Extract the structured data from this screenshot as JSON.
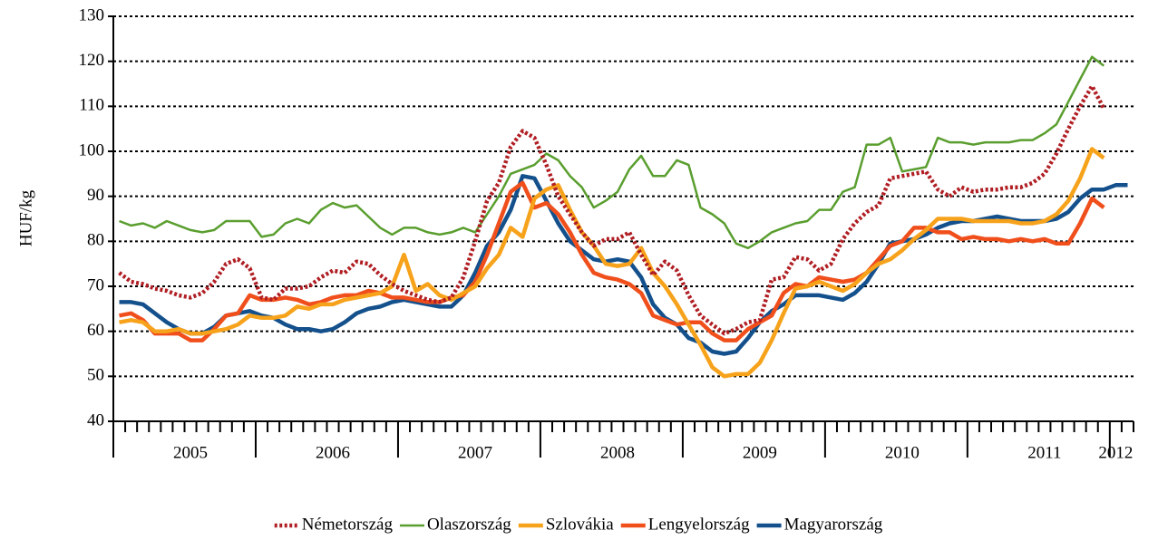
{
  "chart_data": {
    "type": "line",
    "ylabel": "HUF/kg",
    "categories": [
      null,
      null,
      null,
      null,
      null,
      null,
      "2005",
      null,
      null,
      null,
      null,
      null,
      null,
      null,
      null,
      null,
      null,
      null,
      "2006",
      null,
      null,
      null,
      null,
      null,
      null,
      null,
      null,
      null,
      null,
      null,
      "2007",
      null,
      null,
      null,
      null,
      null,
      null,
      null,
      null,
      null,
      null,
      null,
      "2008",
      null,
      null,
      null,
      null,
      null,
      null,
      null,
      null,
      null,
      null,
      null,
      "2009",
      null,
      null,
      null,
      null,
      null,
      null,
      null,
      null,
      null,
      null,
      null,
      "2010",
      null,
      null,
      null,
      null,
      null,
      null,
      null,
      null,
      null,
      null,
      null,
      "2011",
      null,
      null,
      null,
      null,
      null,
      "2012",
      null
    ],
    "ylim": [
      40,
      130
    ],
    "yticks": [
      40,
      50,
      60,
      70,
      80,
      90,
      100,
      110,
      120,
      130
    ],
    "grid": true,
    "series": [
      {
        "name": "Németország",
        "color": "#b01e23",
        "dashed": true,
        "values": [
          73,
          71,
          70.5,
          69.5,
          69,
          68,
          67.5,
          68.5,
          71,
          75,
          76,
          74,
          67.5,
          67,
          69.5,
          69.5,
          70,
          72,
          73.5,
          73,
          75.5,
          75,
          72.5,
          70.5,
          69,
          68,
          67,
          66.5,
          67.5,
          72,
          80,
          89,
          93,
          101,
          104.5,
          103,
          97,
          90,
          86,
          82,
          79,
          80.5,
          80.5,
          82,
          77,
          72.5,
          75.5,
          73.5,
          68,
          63.5,
          61.5,
          59.5,
          60.5,
          62,
          62.5,
          71.5,
          72,
          76.5,
          76,
          73.5,
          75,
          80.5,
          84,
          86.5,
          88,
          94,
          94.5,
          95,
          95.5,
          91.5,
          90,
          92,
          91,
          91.5,
          91.5,
          92,
          92,
          93,
          95,
          99.5,
          105,
          110,
          114.5,
          109.5,
          null,
          null
        ]
      },
      {
        "name": "Olaszország",
        "color": "#5a9e2f",
        "values": [
          84.5,
          83.5,
          84,
          83,
          84.5,
          83.5,
          82.5,
          82,
          82.5,
          84.5,
          84.5,
          84.5,
          81,
          81.5,
          84,
          85,
          84,
          87,
          88.5,
          87.5,
          88,
          85.5,
          83,
          81.5,
          83,
          83,
          82,
          81.5,
          82,
          83,
          82,
          86,
          90,
          95,
          96,
          97,
          99.5,
          98,
          94.5,
          92,
          87.5,
          89,
          91,
          96,
          99,
          94.5,
          94.5,
          98,
          97,
          87.5,
          86,
          84,
          79.5,
          78.5,
          80,
          82,
          83,
          84,
          84.5,
          87,
          87,
          91,
          92,
          101.5,
          101.5,
          103,
          95.5,
          96,
          96.5,
          103,
          102,
          102,
          101.5,
          102,
          102,
          102,
          102.5,
          102.5,
          104,
          106,
          111,
          116,
          121,
          119,
          null,
          null
        ]
      },
      {
        "name": "Szlovákia",
        "color": "#f7a21b",
        "values": [
          62,
          62.5,
          62,
          60,
          60,
          60.5,
          59.5,
          59.5,
          60,
          60.5,
          61.5,
          63.5,
          63,
          63,
          63.5,
          65.5,
          65,
          66,
          66,
          67,
          67.5,
          68,
          68.5,
          70,
          77,
          69,
          70.5,
          68,
          67,
          68.5,
          70,
          74,
          77,
          83,
          81,
          89.5,
          91.5,
          92.5,
          87,
          82,
          79,
          75,
          74.5,
          75,
          78.5,
          73,
          70,
          66,
          61.5,
          57,
          52,
          50,
          50.5,
          50.5,
          53,
          58,
          64,
          69.5,
          70,
          71,
          70,
          69,
          70.5,
          73,
          75,
          76,
          78,
          80.5,
          82.5,
          85,
          85,
          85,
          84.5,
          84.5,
          84.5,
          84.5,
          84,
          84,
          84.5,
          86,
          89,
          94,
          100.5,
          98.5,
          null,
          null
        ]
      },
      {
        "name": "Lengyelország",
        "color": "#f04f1c",
        "values": [
          63.5,
          64,
          62.5,
          59.5,
          59.5,
          59.5,
          58,
          58,
          60.5,
          63.5,
          64,
          68,
          67,
          67,
          67.5,
          67,
          66,
          66.5,
          67.5,
          68,
          68,
          69,
          68.5,
          67.5,
          67.5,
          67,
          66.5,
          66.5,
          67.5,
          68,
          71,
          77,
          84,
          91,
          93,
          87.5,
          88.5,
          86,
          82,
          77,
          73,
          72,
          71.5,
          70.5,
          68.5,
          63.5,
          62.5,
          61.5,
          62,
          62,
          59.5,
          58,
          58,
          60.5,
          62,
          63.5,
          68.5,
          70.5,
          70,
          72,
          71.5,
          71,
          71.5,
          73,
          76,
          79,
          80,
          83,
          83,
          82,
          82,
          80.5,
          81,
          80.5,
          80.5,
          80,
          80.5,
          80,
          80.5,
          79.5,
          79.5,
          84,
          89.5,
          87.5,
          null,
          null
        ]
      },
      {
        "name": "Magyarország",
        "color": "#13508c",
        "values": [
          66.5,
          66.5,
          66,
          64,
          62,
          60.5,
          59.5,
          59.5,
          61,
          63.5,
          64,
          64.5,
          63.5,
          63,
          61.5,
          60.5,
          60.5,
          60,
          60.5,
          62,
          64,
          65,
          65.5,
          66.5,
          67,
          66.5,
          66,
          65.5,
          65.5,
          68,
          73,
          79,
          82,
          87,
          94.5,
          94,
          89,
          84,
          80,
          78,
          76,
          75.5,
          76,
          75.5,
          72,
          66,
          63,
          61.5,
          58.5,
          57.5,
          55.5,
          55,
          55.5,
          58.5,
          62,
          64.5,
          66,
          68,
          68,
          68,
          67.5,
          67,
          68.5,
          71,
          75,
          79.5,
          80,
          80.5,
          81.5,
          83,
          84,
          84.5,
          84.5,
          85,
          85.5,
          85,
          84.5,
          84.5,
          84.5,
          85,
          86.5,
          89.5,
          91.5,
          91.5,
          92.5,
          92.5
        ]
      }
    ]
  }
}
